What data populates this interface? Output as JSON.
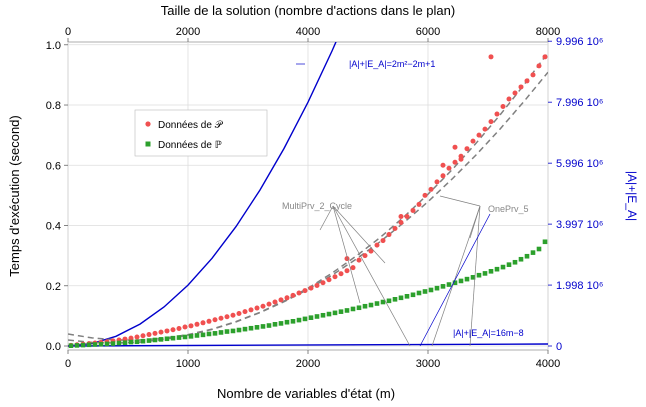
{
  "chart_data": {
    "type": "scatter",
    "xlabel": "Nombre de variables d'état (m)",
    "x_top_label": "Taille de la solution (nombre d'actions dans le plan)",
    "ylabel": "Temps d'exécution (second)",
    "y_right_label": "|A|+|E_A|",
    "xlim": [
      0,
      4000
    ],
    "x_top_lim": [
      0,
      8000
    ],
    "ylim": [
      0,
      1.0
    ],
    "y_right_lim": [
      0,
      10000000
    ],
    "x_ticks": [
      "0",
      "1000",
      "2000",
      "3000",
      "4000"
    ],
    "x_top_ticks": [
      "0",
      "2000",
      "4000",
      "6000",
      "8000"
    ],
    "y_ticks": [
      "0.0",
      "0.2",
      "0.4",
      "0.6",
      "0.8",
      "1.0"
    ],
    "y_right_ticks": [
      "0",
      "1.998 10⁶",
      "3.997 10⁶",
      "5.996 10⁶",
      "7.996 10⁶",
      "9.996 10⁶"
    ],
    "grid": true,
    "legend_position": "upper-left",
    "series": [
      {
        "name": "Données de 𝒫",
        "color": "#f05050",
        "marker": "circle",
        "x": [
          25,
          75,
          125,
          175,
          225,
          275,
          325,
          375,
          425,
          475,
          525,
          575,
          625,
          675,
          725,
          775,
          825,
          875,
          925,
          975,
          1025,
          1075,
          1125,
          1175,
          1225,
          1275,
          1325,
          1375,
          1425,
          1475,
          1525,
          1575,
          1625,
          1675,
          1725,
          1775,
          1825,
          1875,
          1925,
          1975,
          2025,
          2075,
          2125,
          2175,
          2225,
          2275,
          2325,
          2375,
          2425,
          2475,
          2525,
          2575,
          2625,
          2675,
          2725,
          2775,
          2825,
          2875,
          2925,
          2975,
          3025,
          3075,
          3125,
          3175,
          3225,
          3275,
          3325,
          3375,
          3425,
          3475,
          3525,
          3575,
          3625,
          3675,
          3725,
          3775,
          3825,
          3875,
          3925,
          3975,
          2325,
          2775,
          3125,
          3225,
          3275,
          3525,
          3475
        ],
        "y": [
          0.002,
          0.004,
          0.006,
          0.008,
          0.01,
          0.012,
          0.014,
          0.017,
          0.02,
          0.023,
          0.026,
          0.03,
          0.034,
          0.038,
          0.042,
          0.046,
          0.05,
          0.054,
          0.058,
          0.063,
          0.067,
          0.072,
          0.077,
          0.082,
          0.087,
          0.092,
          0.097,
          0.102,
          0.108,
          0.114,
          0.12,
          0.126,
          0.132,
          0.139,
          0.146,
          0.153,
          0.16,
          0.168,
          0.176,
          0.184,
          0.192,
          0.201,
          0.21,
          0.22,
          0.23,
          0.24,
          0.25,
          0.26,
          0.285,
          0.3,
          0.315,
          0.335,
          0.35,
          0.37,
          0.39,
          0.41,
          0.43,
          0.45,
          0.47,
          0.5,
          0.52,
          0.545,
          0.565,
          0.59,
          0.61,
          0.63,
          0.655,
          0.68,
          0.7,
          0.72,
          0.745,
          0.77,
          0.795,
          0.82,
          0.84,
          0.86,
          0.88,
          0.9,
          0.93,
          0.96,
          0.29,
          0.43,
          0.6,
          0.66,
          0.62,
          0.96,
          1.02
        ]
      },
      {
        "name": "Données de ℙ",
        "color": "#2ca02c",
        "marker": "square",
        "x": [
          25,
          75,
          125,
          175,
          225,
          275,
          325,
          375,
          425,
          475,
          525,
          575,
          625,
          675,
          725,
          775,
          825,
          875,
          925,
          975,
          1025,
          1075,
          1125,
          1175,
          1225,
          1275,
          1325,
          1375,
          1425,
          1475,
          1525,
          1575,
          1625,
          1675,
          1725,
          1775,
          1825,
          1875,
          1925,
          1975,
          2025,
          2075,
          2125,
          2175,
          2225,
          2275,
          2325,
          2375,
          2425,
          2475,
          2525,
          2575,
          2625,
          2675,
          2725,
          2775,
          2825,
          2875,
          2925,
          2975,
          3025,
          3075,
          3125,
          3175,
          3225,
          3275,
          3325,
          3375,
          3425,
          3475,
          3525,
          3575,
          3625,
          3675,
          3725,
          3775,
          3825,
          3875,
          3925,
          3975
        ],
        "y": [
          0.001,
          0.002,
          0.003,
          0.004,
          0.005,
          0.006,
          0.007,
          0.008,
          0.01,
          0.011,
          0.013,
          0.014,
          0.016,
          0.018,
          0.02,
          0.022,
          0.024,
          0.026,
          0.028,
          0.03,
          0.032,
          0.035,
          0.037,
          0.04,
          0.042,
          0.045,
          0.048,
          0.05,
          0.053,
          0.056,
          0.059,
          0.062,
          0.065,
          0.068,
          0.072,
          0.075,
          0.079,
          0.082,
          0.086,
          0.09,
          0.094,
          0.098,
          0.102,
          0.106,
          0.11,
          0.114,
          0.118,
          0.123,
          0.127,
          0.132,
          0.136,
          0.141,
          0.146,
          0.15,
          0.155,
          0.16,
          0.165,
          0.17,
          0.176,
          0.181,
          0.186,
          0.192,
          0.198,
          0.204,
          0.21,
          0.216,
          0.222,
          0.228,
          0.235,
          0.241,
          0.248,
          0.255,
          0.262,
          0.27,
          0.278,
          0.288,
          0.298,
          0.31,
          0.322,
          0.346
        ]
      }
    ],
    "curves": [
      {
        "name": "|A|+|E_A|=2m²−2m+1",
        "label": "|A|+|E_A|=2m²−2m+1",
        "color": "#0000cc",
        "style": "solid",
        "axis": "right",
        "x": [
          0,
          200,
          400,
          600,
          800,
          1000,
          1200,
          1400,
          1600,
          1800,
          2000,
          2200,
          2280
        ],
        "y": [
          1,
          79601,
          319201,
          718801,
          1278401,
          1998001,
          2877601,
          3917201,
          5116801,
          6476401,
          7996001,
          9675601,
          10392961
        ]
      },
      {
        "name": "|A|+|E_A|=16m−8",
        "label": "|A|+|E_A|=16m−8",
        "color": "#0000cc",
        "style": "solid",
        "axis": "right",
        "x": [
          0,
          4000
        ],
        "y": [
          -8,
          63992
        ]
      },
      {
        "name": "MultiPrv_2_Cycle",
        "label": "MultiPrv_2_Cycle",
        "color": "#808080",
        "style": "dashed",
        "axis": "left",
        "x": [
          0,
          200,
          400,
          600,
          800,
          1000,
          1200,
          1400,
          1600,
          1800,
          2000,
          2200,
          2400,
          2600,
          2800,
          3000,
          3200,
          3400,
          3600,
          3800,
          4000
        ],
        "y": [
          0.04,
          0.027,
          0.02,
          0.02,
          0.026,
          0.038,
          0.056,
          0.081,
          0.112,
          0.149,
          0.192,
          0.242,
          0.298,
          0.36,
          0.429,
          0.504,
          0.585,
          0.673,
          0.767,
          0.867,
          0.974
        ]
      },
      {
        "name": "OnePrv_5",
        "label": "OnePrv_5",
        "color": "#808080",
        "style": "dashed",
        "axis": "left",
        "x": [
          0,
          200,
          400,
          600,
          800,
          1000,
          1200,
          1400,
          1600,
          1800,
          2000,
          2200,
          2400,
          2600,
          2800,
          3000,
          3200,
          3400,
          3600,
          3800,
          4000
        ],
        "y": [
          0.02,
          0.012,
          0.01,
          0.013,
          0.022,
          0.036,
          0.055,
          0.08,
          0.111,
          0.147,
          0.188,
          0.235,
          0.288,
          0.346,
          0.41,
          0.479,
          0.554,
          0.634,
          0.72,
          0.812,
          0.909
        ]
      }
    ]
  }
}
